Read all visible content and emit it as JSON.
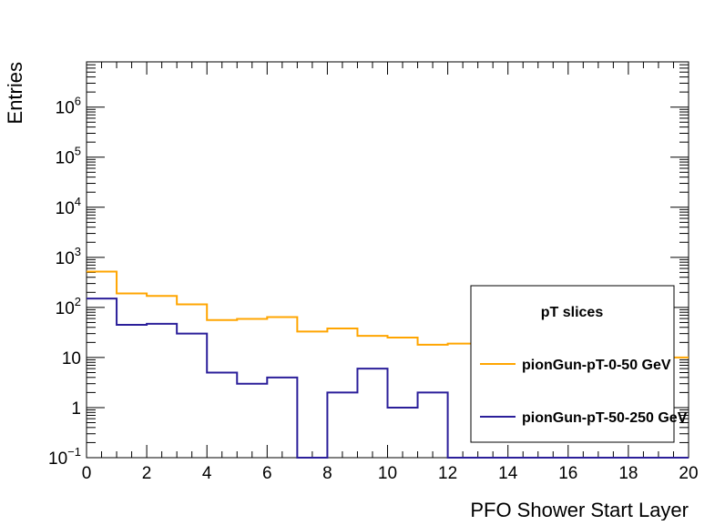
{
  "chart_data": {
    "type": "histogram",
    "xlabel": "PFO Shower Start Layer",
    "ylabel": "Entries",
    "xlim": [
      0,
      20
    ],
    "ylim": [
      0.1,
      8000000
    ],
    "yscale": "log",
    "bin_edges": [
      0,
      1,
      2,
      3,
      4,
      5,
      6,
      7,
      8,
      9,
      10,
      11,
      12,
      13,
      14,
      15,
      16,
      17,
      18,
      19,
      20
    ],
    "x_ticks": [
      {
        "value": 0,
        "label": "0"
      },
      {
        "value": 2,
        "label": "2"
      },
      {
        "value": 4,
        "label": "4"
      },
      {
        "value": 6,
        "label": "6"
      },
      {
        "value": 8,
        "label": "8"
      },
      {
        "value": 10,
        "label": "10"
      },
      {
        "value": 12,
        "label": "12"
      },
      {
        "value": 14,
        "label": "14"
      },
      {
        "value": 16,
        "label": "16"
      },
      {
        "value": 18,
        "label": "18"
      },
      {
        "value": 20,
        "label": "20"
      }
    ],
    "y_ticks": [
      {
        "value": 0.1,
        "base": "10",
        "exp": "−1"
      },
      {
        "value": 1,
        "base": "1",
        "exp": ""
      },
      {
        "value": 10,
        "base": "10",
        "exp": ""
      },
      {
        "value": 100,
        "base": "10",
        "exp": "2"
      },
      {
        "value": 1000,
        "base": "10",
        "exp": "3"
      },
      {
        "value": 10000,
        "base": "10",
        "exp": "4"
      },
      {
        "value": 100000,
        "base": "10",
        "exp": "5"
      },
      {
        "value": 1000000,
        "base": "10",
        "exp": "6"
      }
    ],
    "series": [
      {
        "name": "pionGun-pT-0-50 GeV",
        "color": "#ffa500",
        "values": [
          520,
          190,
          170,
          115,
          56,
          59,
          64,
          33,
          38,
          27,
          25,
          18,
          19,
          20,
          15,
          12,
          12,
          10,
          10,
          10
        ]
      },
      {
        "name": "pionGun-pT-50-250 GeV",
        "color": "#2b1f9a",
        "values": [
          150,
          45,
          47,
          30,
          5,
          3,
          4,
          0,
          2,
          6,
          1,
          2,
          0,
          0,
          0,
          0,
          0,
          0,
          0,
          0
        ]
      }
    ],
    "legend": {
      "title": "pT slices",
      "position": "bottom-right"
    }
  }
}
